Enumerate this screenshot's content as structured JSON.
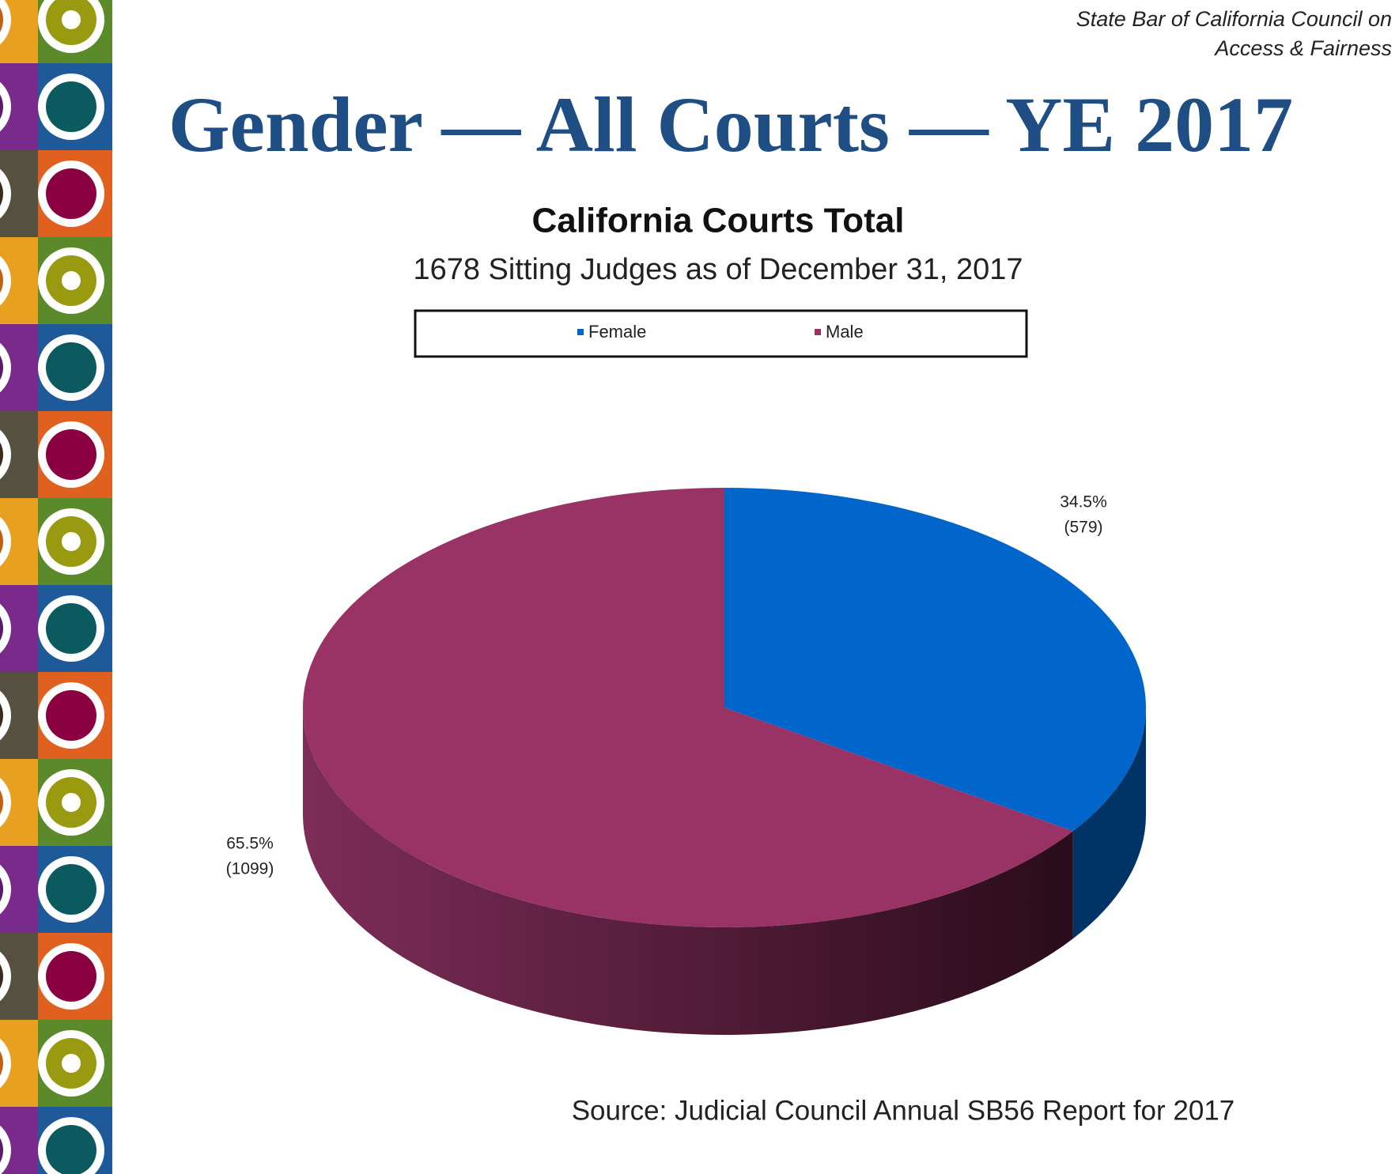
{
  "header": {
    "lines": [
      "State Bar of California Council on",
      "Access & Fairness"
    ]
  },
  "slide_title": "Gender — All Courts — YE 2017",
  "chart_data": {
    "type": "pie",
    "title": "California Courts Total",
    "subtitle": "1678 Sitting Judges as of December 31, 2017",
    "categories": [
      "Female",
      "Male"
    ],
    "values": [
      34.5,
      65.5
    ],
    "value_labels": [
      "34.5%",
      "65.5%"
    ],
    "counts": [
      579,
      1099
    ],
    "count_labels": [
      "(579)",
      "(1099)"
    ],
    "colors": [
      "#0066cc",
      "#993366"
    ],
    "legend": "top"
  },
  "source": "Source:  Judicial Council Annual SB56 Report for 2017"
}
